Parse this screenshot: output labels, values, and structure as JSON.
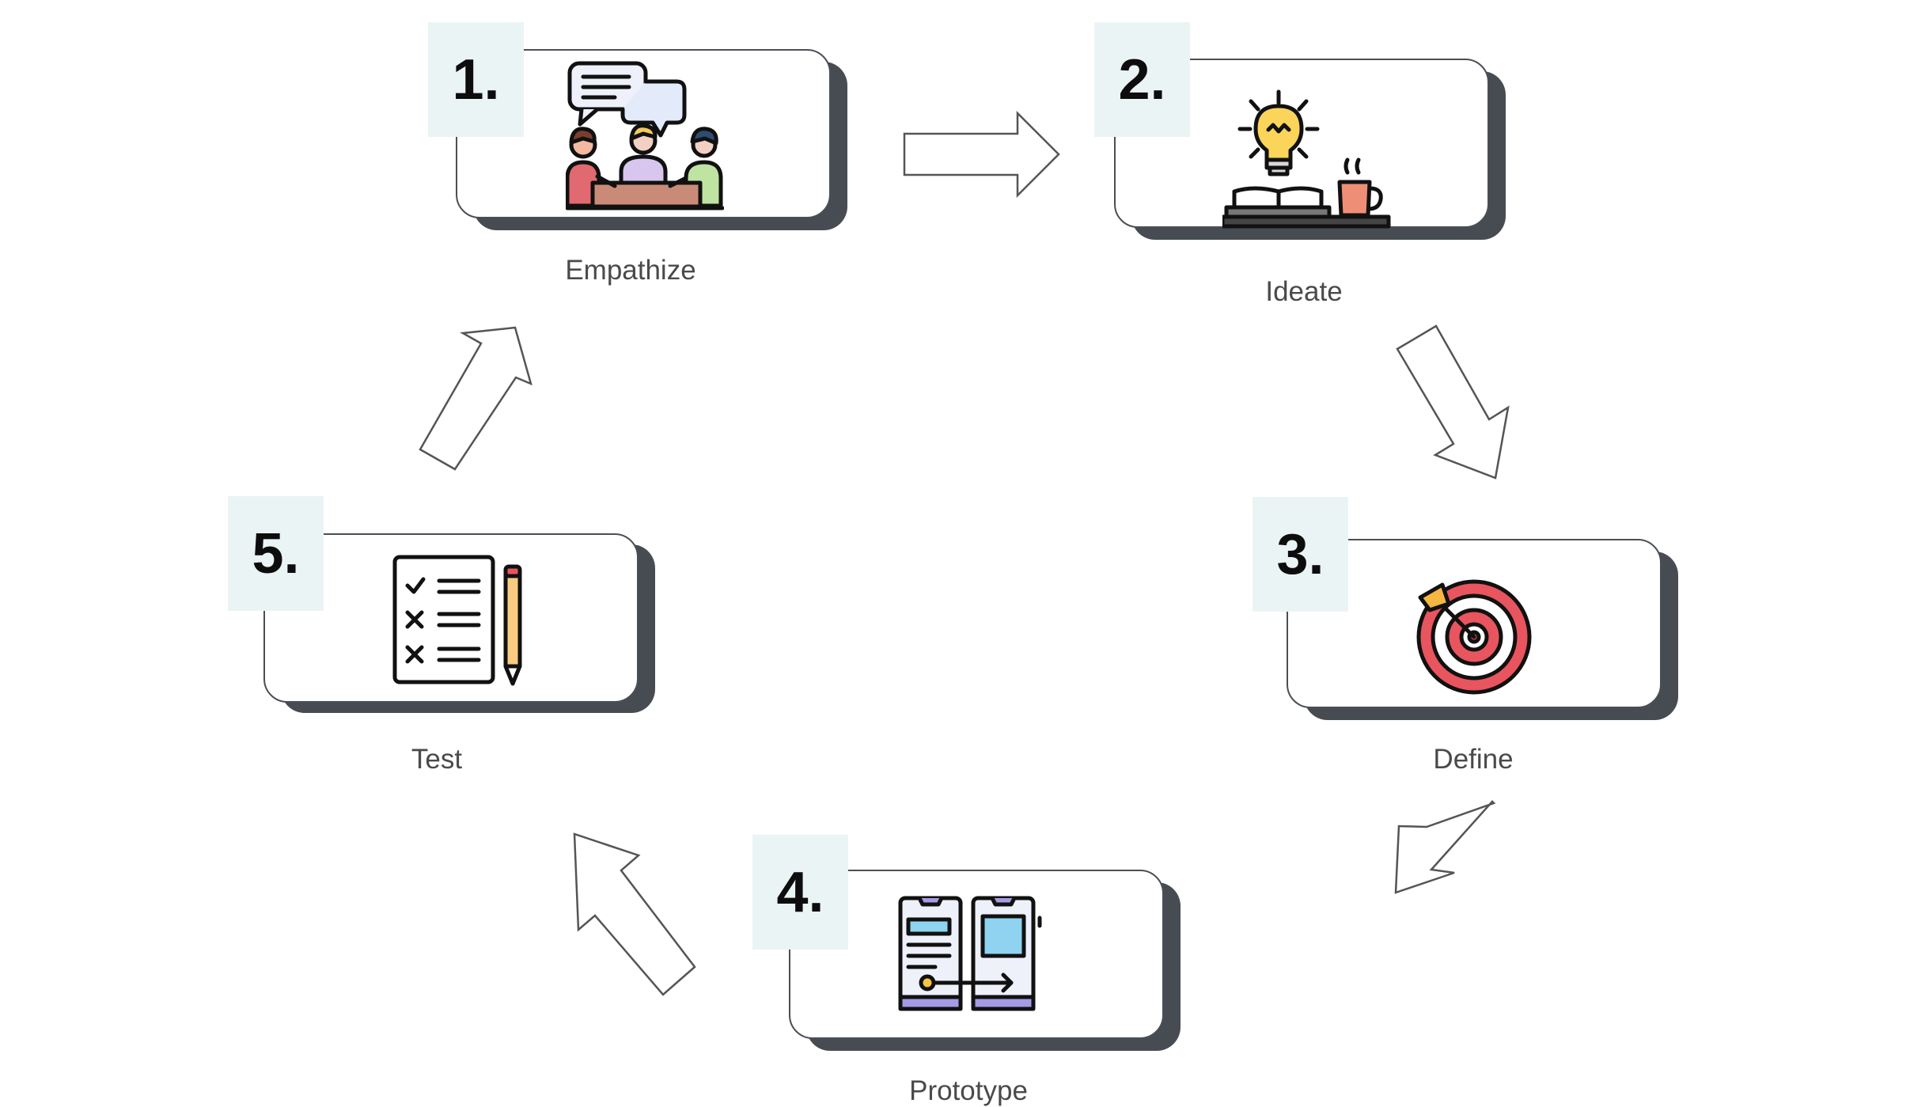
{
  "steps": [
    {
      "number": "1.",
      "label": "Empathize",
      "icon": "people-talking-icon"
    },
    {
      "number": "2.",
      "label": "Ideate",
      "icon": "lightbulb-books-icon"
    },
    {
      "number": "3.",
      "label": "Define",
      "icon": "target-arrow-icon"
    },
    {
      "number": "4.",
      "label": "Prototype",
      "icon": "phone-wireframes-icon"
    },
    {
      "number": "5.",
      "label": "Test",
      "icon": "checklist-pencil-icon"
    }
  ],
  "colors": {
    "badge_bg": "#ebf4f4",
    "card_border": "#4a4f55",
    "card_shadow": "#474c52",
    "label_text": "#4a4a4a",
    "arrow_stroke": "#555555"
  }
}
